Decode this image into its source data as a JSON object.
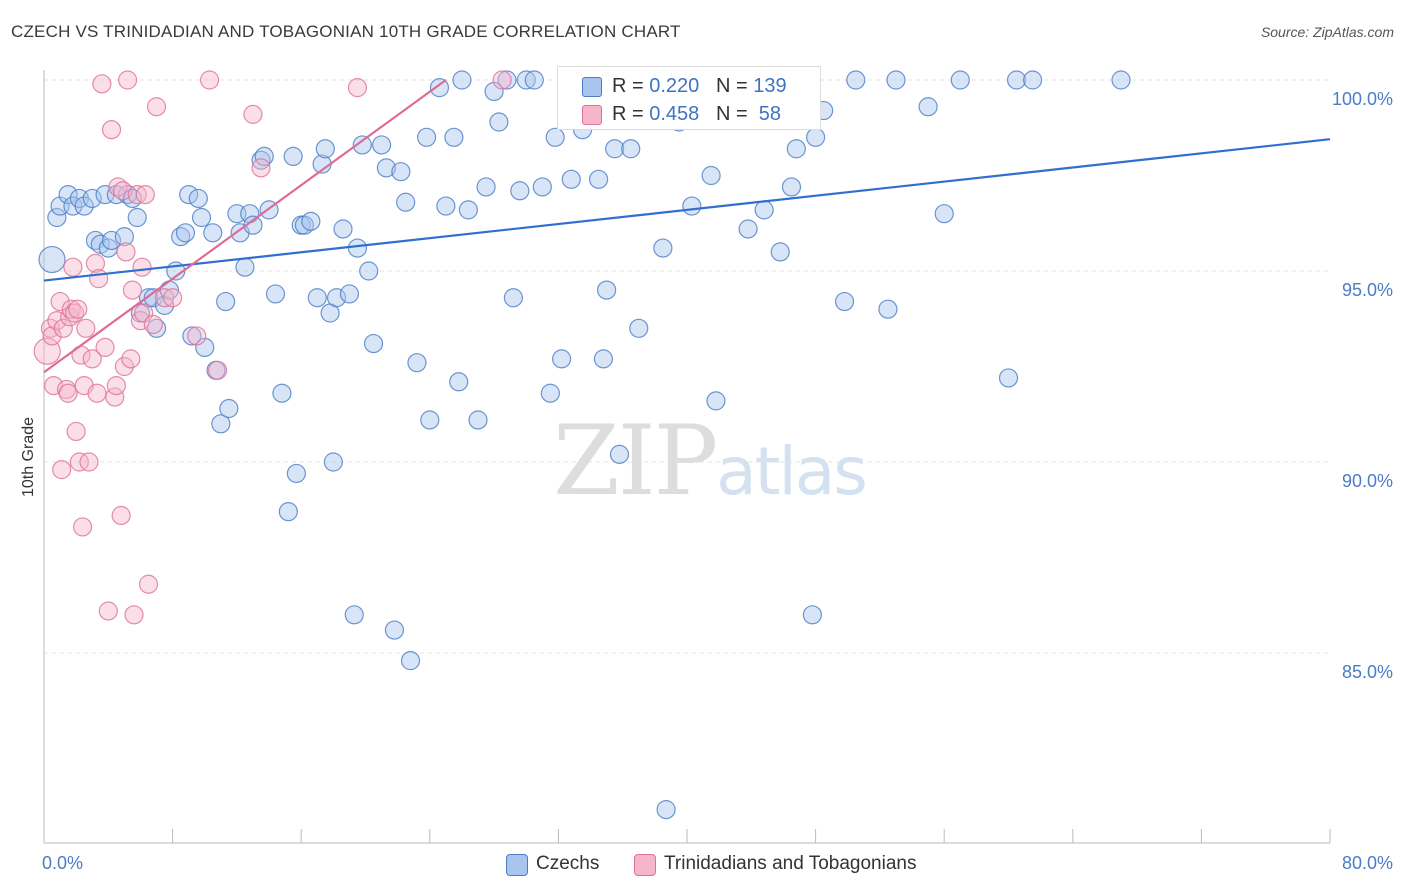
{
  "chart_data": {
    "type": "scatter",
    "title": "CZECH VS TRINIDADIAN AND TOBAGONIAN 10TH GRADE CORRELATION CHART",
    "source": "Source: ZipAtlas.com",
    "xlabel": "",
    "ylabel": "10th Grade",
    "xlim": [
      0,
      80
    ],
    "ylim": [
      80.3,
      100.5
    ],
    "x_tick_labels": [
      "0.0%",
      "80.0%"
    ],
    "y_ticks": [
      {
        "value": 100,
        "label": "100.0%"
      },
      {
        "value": 95,
        "label": "95.0%"
      },
      {
        "value": 90,
        "label": "90.0%"
      },
      {
        "value": 85,
        "label": "85.0%"
      }
    ],
    "grid": true,
    "legend_position": "top-center",
    "watermark": {
      "zip": "ZIP",
      "atlas": "atlas"
    },
    "series": [
      {
        "name": "Czechs",
        "color": "#4a7cc7",
        "fill": "#a9c5ee",
        "R": "0.220",
        "N": "139",
        "trend": {
          "x0": 0,
          "y0": 94.75,
          "x1": 80,
          "y1": 98.45
        },
        "points": [
          [
            0.5,
            95.3
          ],
          [
            0.8,
            96.4
          ],
          [
            1.0,
            96.7
          ],
          [
            1.5,
            97.0
          ],
          [
            1.8,
            96.7
          ],
          [
            2.2,
            96.9
          ],
          [
            2.5,
            96.7
          ],
          [
            3.0,
            96.9
          ],
          [
            3.2,
            95.8
          ],
          [
            3.5,
            95.7
          ],
          [
            3.8,
            97.0
          ],
          [
            4.0,
            95.6
          ],
          [
            4.2,
            95.8
          ],
          [
            4.5,
            97.0
          ],
          [
            5.0,
            95.9
          ],
          [
            5.2,
            97.0
          ],
          [
            5.5,
            96.9
          ],
          [
            5.8,
            96.4
          ],
          [
            6.0,
            93.9
          ],
          [
            6.5,
            94.3
          ],
          [
            6.8,
            94.3
          ],
          [
            7.0,
            93.5
          ],
          [
            7.5,
            94.1
          ],
          [
            7.8,
            94.5
          ],
          [
            8.2,
            95.0
          ],
          [
            8.5,
            95.9
          ],
          [
            8.8,
            96.0
          ],
          [
            9.0,
            97.0
          ],
          [
            9.2,
            93.3
          ],
          [
            9.6,
            96.9
          ],
          [
            9.8,
            96.4
          ],
          [
            10.0,
            93.0
          ],
          [
            10.5,
            96.0
          ],
          [
            10.7,
            92.4
          ],
          [
            11.0,
            91.0
          ],
          [
            11.3,
            94.2
          ],
          [
            11.5,
            91.4
          ],
          [
            12.0,
            96.5
          ],
          [
            12.2,
            96.0
          ],
          [
            12.5,
            95.1
          ],
          [
            12.8,
            96.5
          ],
          [
            13.0,
            96.2
          ],
          [
            13.5,
            97.9
          ],
          [
            13.7,
            98.0
          ],
          [
            14.0,
            96.6
          ],
          [
            14.4,
            94.4
          ],
          [
            14.8,
            91.8
          ],
          [
            15.2,
            88.7
          ],
          [
            15.5,
            98.0
          ],
          [
            15.7,
            89.7
          ],
          [
            16.0,
            96.2
          ],
          [
            16.2,
            96.2
          ],
          [
            16.6,
            96.3
          ],
          [
            17.0,
            94.3
          ],
          [
            17.3,
            97.8
          ],
          [
            17.5,
            98.2
          ],
          [
            17.8,
            93.9
          ],
          [
            18.0,
            90.0
          ],
          [
            18.2,
            94.3
          ],
          [
            18.6,
            96.1
          ],
          [
            19.0,
            94.4
          ],
          [
            19.3,
            86.0
          ],
          [
            19.5,
            95.6
          ],
          [
            19.8,
            98.3
          ],
          [
            20.2,
            95.0
          ],
          [
            20.5,
            93.1
          ],
          [
            21.0,
            98.3
          ],
          [
            21.3,
            97.7
          ],
          [
            21.8,
            85.6
          ],
          [
            22.2,
            97.6
          ],
          [
            22.5,
            96.8
          ],
          [
            22.8,
            84.8
          ],
          [
            23.2,
            92.6
          ],
          [
            23.8,
            98.5
          ],
          [
            24.0,
            91.1
          ],
          [
            24.6,
            99.8
          ],
          [
            25.0,
            96.7
          ],
          [
            25.5,
            98.5
          ],
          [
            25.8,
            92.1
          ],
          [
            26.0,
            100.0
          ],
          [
            26.4,
            96.6
          ],
          [
            27.0,
            91.1
          ],
          [
            27.5,
            97.2
          ],
          [
            28.0,
            99.7
          ],
          [
            28.3,
            98.9
          ],
          [
            28.8,
            100.0
          ],
          [
            29.2,
            94.3
          ],
          [
            29.6,
            97.1
          ],
          [
            30.0,
            100.0
          ],
          [
            30.5,
            100.0
          ],
          [
            31.0,
            97.2
          ],
          [
            31.5,
            91.8
          ],
          [
            31.8,
            98.5
          ],
          [
            32.2,
            92.7
          ],
          [
            32.8,
            97.4
          ],
          [
            33.0,
            100.0
          ],
          [
            33.5,
            98.7
          ],
          [
            34.0,
            99.1
          ],
          [
            34.5,
            97.4
          ],
          [
            34.8,
            92.7
          ],
          [
            35.0,
            94.5
          ],
          [
            35.5,
            98.2
          ],
          [
            35.8,
            90.2
          ],
          [
            36.5,
            98.2
          ],
          [
            37.0,
            93.5
          ],
          [
            37.8,
            100.0
          ],
          [
            38.0,
            99.0
          ],
          [
            38.5,
            95.6
          ],
          [
            38.7,
            80.9
          ],
          [
            39.0,
            100.0
          ],
          [
            39.5,
            98.9
          ],
          [
            40.0,
            100.0
          ],
          [
            40.3,
            96.7
          ],
          [
            41.0,
            100.0
          ],
          [
            41.5,
            97.5
          ],
          [
            41.8,
            91.6
          ],
          [
            42.0,
            100.0
          ],
          [
            42.5,
            99.7
          ],
          [
            43.8,
            96.1
          ],
          [
            44.2,
            100.0
          ],
          [
            44.8,
            96.6
          ],
          [
            45.5,
            100.0
          ],
          [
            45.8,
            95.5
          ],
          [
            46.5,
            97.2
          ],
          [
            46.8,
            98.2
          ],
          [
            47.2,
            100.0
          ],
          [
            47.8,
            86.0
          ],
          [
            48.0,
            98.5
          ],
          [
            48.5,
            99.2
          ],
          [
            49.8,
            94.2
          ],
          [
            50.5,
            100.0
          ],
          [
            52.5,
            94.0
          ],
          [
            53.0,
            100.0
          ],
          [
            55.0,
            99.3
          ],
          [
            56.0,
            96.5
          ],
          [
            57.0,
            100.0
          ],
          [
            60.0,
            92.2
          ],
          [
            60.5,
            100.0
          ],
          [
            61.5,
            100.0
          ],
          [
            67.0,
            100.0
          ]
        ]
      },
      {
        "name": "Trinidadians and Tobagonians",
        "color": "#e0709a",
        "fill": "#f5b6cb",
        "R": "0.458",
        "N": "58",
        "trend": {
          "x0": 0,
          "y0": 92.35,
          "x1": 25,
          "y1": 100.0
        },
        "points": [
          [
            0.2,
            92.9
          ],
          [
            0.4,
            93.5
          ],
          [
            0.5,
            93.3
          ],
          [
            0.6,
            92.0
          ],
          [
            0.8,
            93.7
          ],
          [
            1.0,
            94.2
          ],
          [
            1.1,
            89.8
          ],
          [
            1.2,
            93.5
          ],
          [
            1.4,
            91.9
          ],
          [
            1.5,
            91.8
          ],
          [
            1.6,
            93.8
          ],
          [
            1.7,
            94.0
          ],
          [
            1.8,
            95.1
          ],
          [
            1.9,
            93.9
          ],
          [
            2.0,
            90.8
          ],
          [
            2.1,
            94.0
          ],
          [
            2.2,
            90.0
          ],
          [
            2.3,
            92.8
          ],
          [
            2.4,
            88.3
          ],
          [
            2.5,
            92.0
          ],
          [
            2.6,
            93.5
          ],
          [
            2.8,
            90.0
          ],
          [
            3.0,
            92.7
          ],
          [
            3.2,
            95.2
          ],
          [
            3.3,
            91.8
          ],
          [
            3.4,
            94.8
          ],
          [
            3.6,
            99.9
          ],
          [
            3.8,
            93.0
          ],
          [
            4.0,
            86.1
          ],
          [
            4.2,
            98.7
          ],
          [
            4.4,
            91.7
          ],
          [
            4.5,
            92.0
          ],
          [
            4.6,
            97.2
          ],
          [
            4.8,
            88.6
          ],
          [
            4.9,
            97.1
          ],
          [
            5.0,
            92.5
          ],
          [
            5.1,
            95.5
          ],
          [
            5.2,
            100.0
          ],
          [
            5.4,
            92.7
          ],
          [
            5.5,
            94.5
          ],
          [
            5.6,
            86.0
          ],
          [
            5.8,
            97.0
          ],
          [
            6.0,
            93.7
          ],
          [
            6.1,
            95.1
          ],
          [
            6.2,
            93.9
          ],
          [
            6.3,
            97.0
          ],
          [
            6.5,
            86.8
          ],
          [
            6.8,
            93.6
          ],
          [
            7.0,
            99.3
          ],
          [
            7.5,
            94.3
          ],
          [
            8.0,
            94.3
          ],
          [
            9.5,
            93.3
          ],
          [
            10.3,
            100.0
          ],
          [
            10.8,
            92.4
          ],
          [
            13.0,
            99.1
          ],
          [
            13.5,
            97.7
          ],
          [
            19.5,
            99.8
          ],
          [
            28.5,
            100.0
          ]
        ]
      }
    ]
  }
}
